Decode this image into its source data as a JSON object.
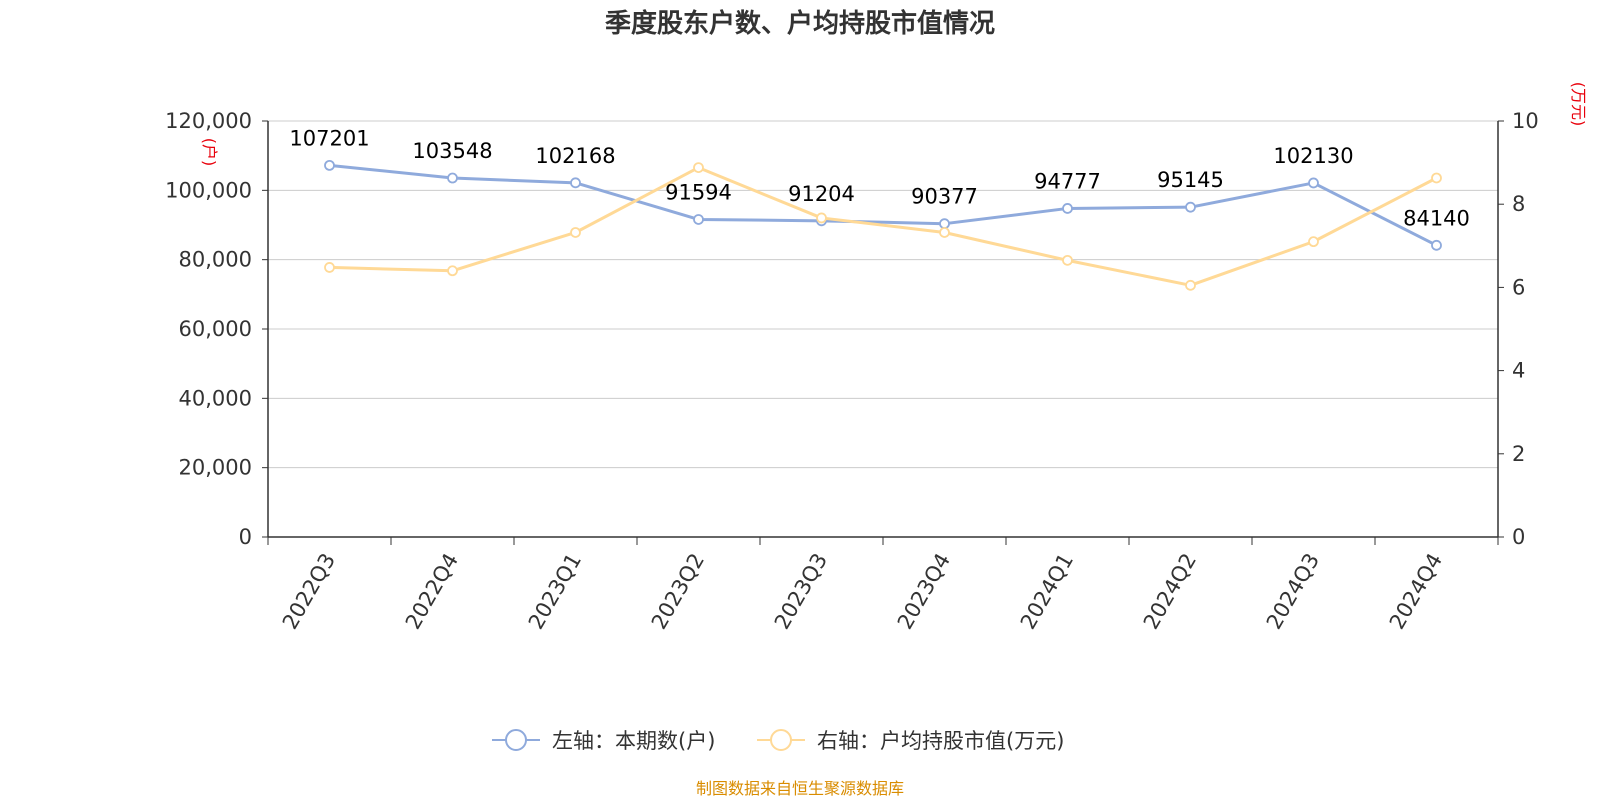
{
  "chart_data": {
    "type": "line",
    "title": "季度股东户数、户均持股市值情况",
    "categories": [
      "2022Q3",
      "2022Q4",
      "2023Q1",
      "2023Q2",
      "2023Q3",
      "2023Q4",
      "2024Q1",
      "2024Q2",
      "2024Q3",
      "2024Q4"
    ],
    "left_axis": {
      "unit": "(户)",
      "ylim": [
        0,
        120000
      ],
      "ticks": [
        "0",
        "20,000",
        "40,000",
        "60,000",
        "80,000",
        "100,000",
        "120,000"
      ]
    },
    "right_axis": {
      "unit": "(万元)",
      "ylim": [
        0,
        10
      ],
      "ticks": [
        "0",
        "2",
        "4",
        "6",
        "8",
        "10"
      ]
    },
    "series": [
      {
        "name": "左轴：本期数(户)",
        "axis": "left",
        "color": "#8faadc",
        "values": [
          107201,
          103548,
          102168,
          91594,
          91204,
          90377,
          94777,
          95145,
          102130,
          84140
        ],
        "labels": [
          "107201",
          "103548",
          "102168",
          "91594",
          "91204",
          "90377",
          "94777",
          "95145",
          "102130",
          "84140"
        ]
      },
      {
        "name": "右轴：户均持股市值(万元)",
        "axis": "right",
        "color": "#ffd996",
        "values": [
          6.48,
          6.4,
          7.32,
          8.88,
          7.67,
          7.32,
          6.65,
          6.05,
          7.1,
          8.63
        ]
      }
    ],
    "grid": true,
    "legend_position": "bottom"
  },
  "source": "制图数据来自恒生聚源数据库"
}
